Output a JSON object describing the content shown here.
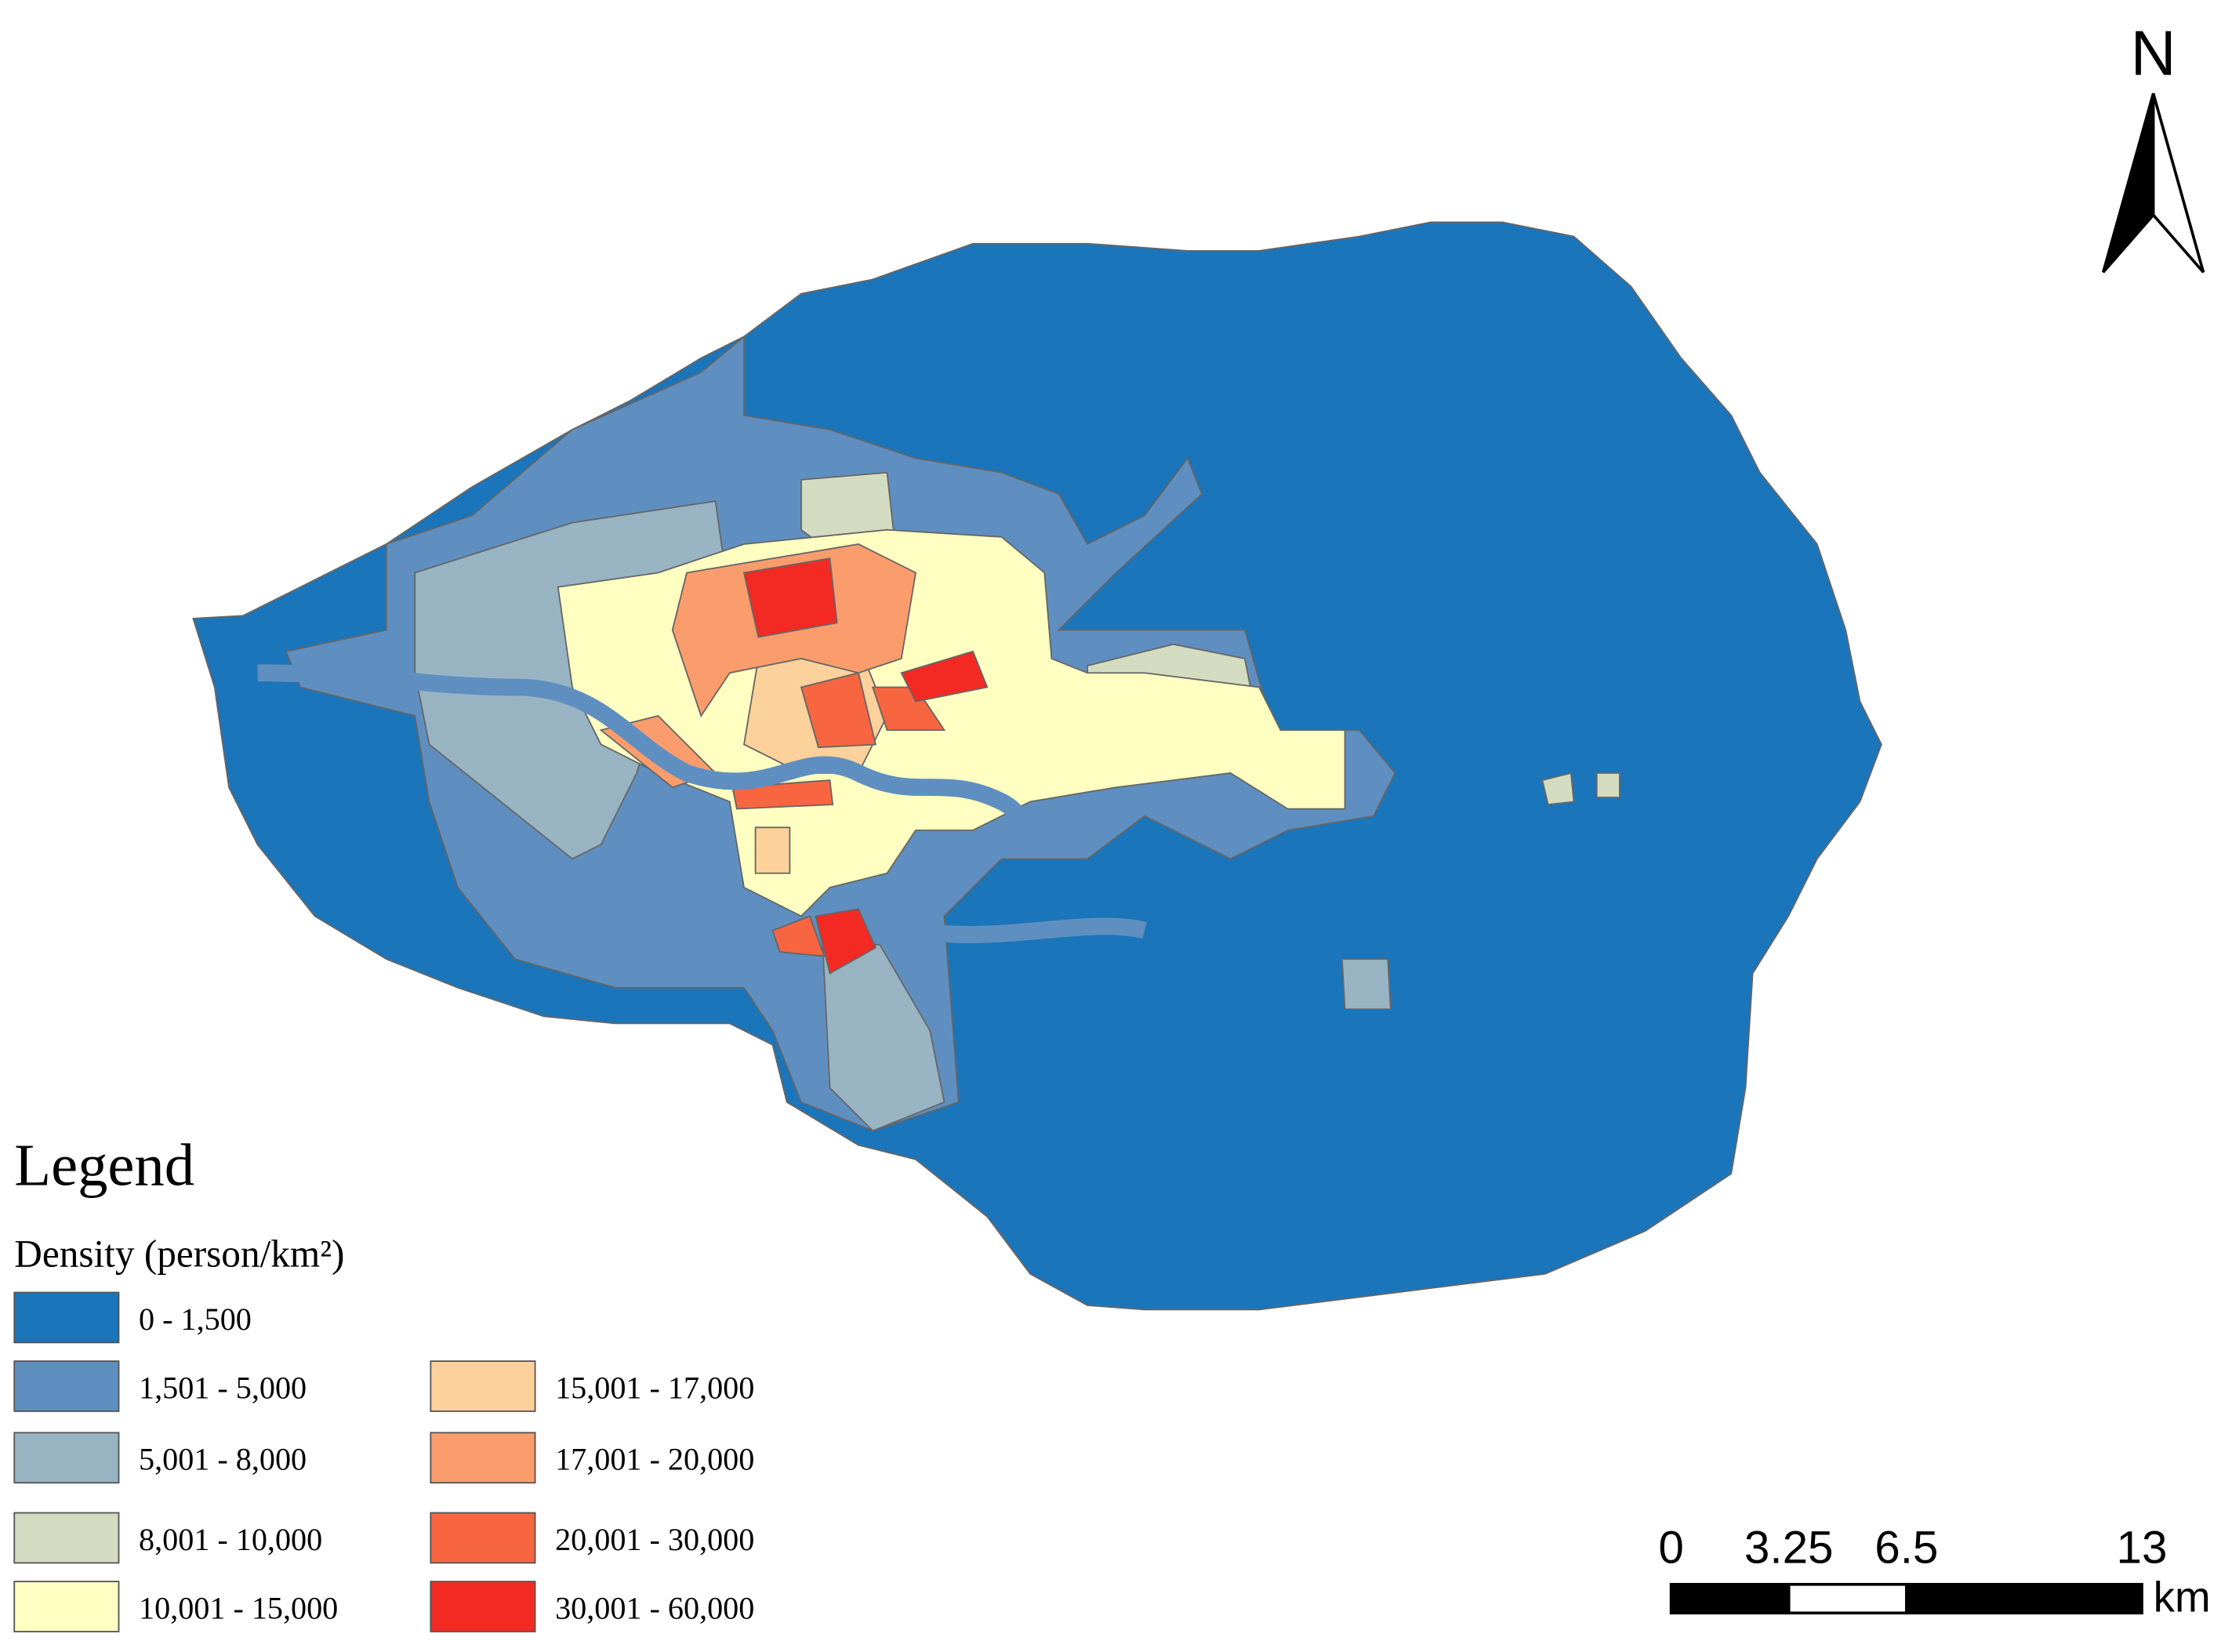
{
  "north": "N",
  "legend": {
    "title": "Legend",
    "subtitle": "Density (person/km²)",
    "classes": [
      {
        "label": "0 - 1,500",
        "color": "#1b75ba"
      },
      {
        "label": "1,501 - 5,000",
        "color": "#5f8fc0"
      },
      {
        "label": "5,001 - 8,000",
        "color": "#98b4c3"
      },
      {
        "label": "8,001 - 10,000",
        "color": "#d3dcc1"
      },
      {
        "label": "10,001 - 15,000",
        "color": "#ffffc1"
      },
      {
        "label": "15,001 - 17,000",
        "color": "#fdd19b"
      },
      {
        "label": "17,001 - 20,000",
        "color": "#fb9c6d"
      },
      {
        "label": "20,001 - 30,000",
        "color": "#f86541"
      },
      {
        "label": "30,001 - 60,000",
        "color": "#f32a23"
      }
    ]
  },
  "scale_bar": {
    "ticks": [
      0,
      3.25,
      6.5,
      13
    ],
    "unit": "km"
  }
}
